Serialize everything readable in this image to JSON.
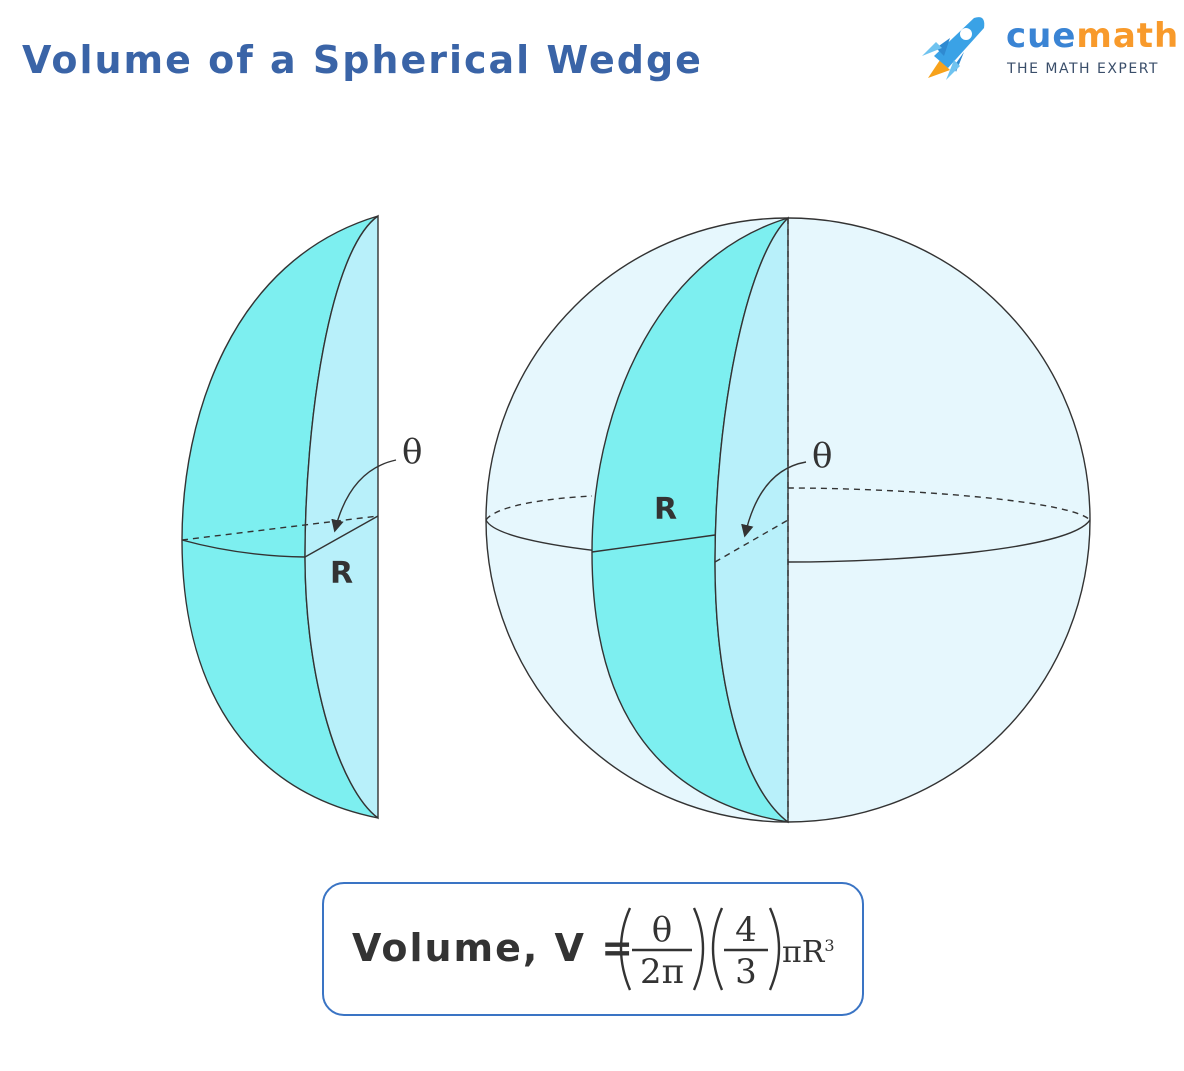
{
  "title": "Volume of a Spherical Wedge",
  "brand": {
    "name_part1": "cue",
    "name_part2": "math",
    "tagline": "THE MATH EXPERT",
    "icon": "rocket-icon"
  },
  "labels": {
    "radius": "R",
    "angle": "θ"
  },
  "formula": {
    "lead": "Volume, V =",
    "frac1_num": "θ",
    "frac1_den": "2π",
    "frac2_num": "4",
    "frac2_den": "3",
    "tail": "πR",
    "exponent": "3"
  },
  "colors": {
    "title": "#3a64a7",
    "wedge_dark": "#7deff0",
    "wedge_light": "#b8f0fa",
    "sphere": "#e6f7fd",
    "box_border": "#3a74c4"
  }
}
